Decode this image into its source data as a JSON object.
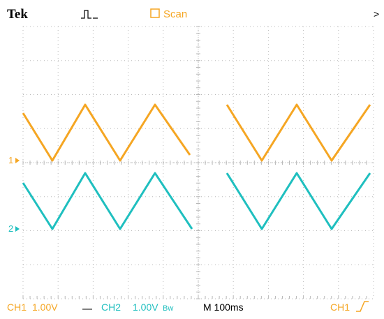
{
  "header": {
    "brand": "Tek",
    "mode": "Scan"
  },
  "markers": {
    "ch1": "1",
    "ch2": "2"
  },
  "footer": {
    "ch1_label": "CH1",
    "ch1_scale": "1.00V",
    "ch2_label": "CH2",
    "ch2_scale": "1.00V",
    "ch2_bw": "Bw",
    "timebase": "M 100ms",
    "trigger_source": "CH1"
  }
}
